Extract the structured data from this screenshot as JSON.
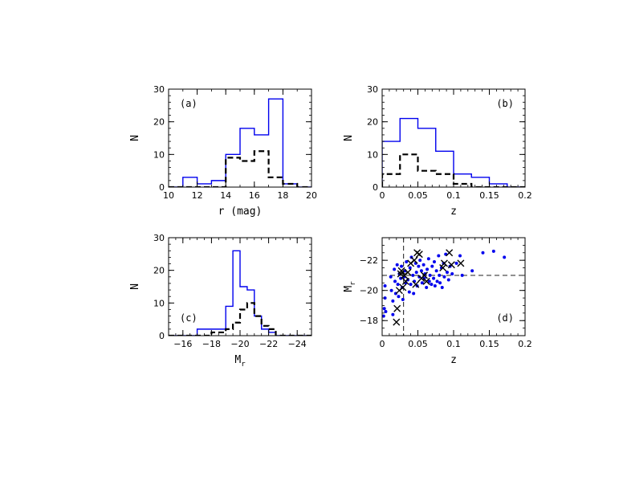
{
  "colors": {
    "all": "#0000ee",
    "subset": "#000000",
    "frame": "#000000"
  },
  "chart_data": [
    {
      "id": "a",
      "type": "histogram",
      "panel_label": "(a)",
      "xlabel": "r (mag)",
      "xlabel_sub": "",
      "ylabel": "N",
      "ylabel_sub": "",
      "xlim": [
        10,
        20
      ],
      "ylim": [
        0,
        30
      ],
      "xticks": [
        10,
        12,
        14,
        16,
        18,
        20
      ],
      "xtick_labels": [
        "10",
        "12",
        "14",
        "16",
        "18",
        "20"
      ],
      "yticks": [
        0,
        10,
        20,
        30
      ],
      "ytick_labels": [
        "0",
        "10",
        "20",
        "30"
      ],
      "series": [
        {
          "style": "solid-blue",
          "edges": [
            10,
            11,
            12,
            13,
            14,
            15,
            16,
            17,
            18,
            19,
            20
          ],
          "counts": [
            0,
            3,
            1,
            2,
            10,
            18,
            16,
            27,
            1,
            0
          ]
        },
        {
          "style": "dashed-black",
          "edges": [
            10,
            11,
            12,
            13,
            14,
            15,
            16,
            17,
            18,
            19,
            20
          ],
          "counts": [
            0,
            0,
            0,
            0,
            9,
            8,
            11,
            3,
            1,
            0
          ]
        }
      ]
    },
    {
      "id": "b",
      "type": "histogram",
      "panel_label": "(b)",
      "xlabel": "z",
      "xlabel_sub": "",
      "ylabel": "N",
      "ylabel_sub": "",
      "xlim": [
        0,
        0.2
      ],
      "ylim": [
        0,
        30
      ],
      "xticks": [
        0,
        0.05,
        0.1,
        0.15,
        0.2
      ],
      "xtick_labels": [
        "0",
        "0.05",
        "0.1",
        "0.15",
        "0.2"
      ],
      "yticks": [
        0,
        10,
        20,
        30
      ],
      "ytick_labels": [
        "0",
        "10",
        "20",
        "30"
      ],
      "series": [
        {
          "style": "solid-blue",
          "edges": [
            0,
            0.025,
            0.05,
            0.075,
            0.1,
            0.125,
            0.15,
            0.175,
            0.2
          ],
          "counts": [
            14,
            21,
            18,
            11,
            4,
            3,
            1,
            0
          ]
        },
        {
          "style": "dashed-black",
          "edges": [
            0,
            0.025,
            0.05,
            0.075,
            0.1,
            0.125,
            0.15,
            0.175,
            0.2
          ],
          "counts": [
            4,
            10,
            5,
            4,
            1,
            0,
            0,
            0
          ]
        }
      ]
    },
    {
      "id": "c",
      "type": "histogram",
      "panel_label": "(c)",
      "xlabel": "M",
      "xlabel_sub": "r",
      "ylabel": "N",
      "ylabel_sub": "",
      "xlim": [
        -15,
        -25
      ],
      "ylim": [
        0,
        30
      ],
      "xticks": [
        -16,
        -18,
        -20,
        -22,
        -24
      ],
      "xtick_labels": [
        "−16",
        "−18",
        "−20",
        "−22",
        "−24"
      ],
      "yticks": [
        0,
        10,
        20,
        30
      ],
      "ytick_labels": [
        "0",
        "10",
        "20",
        "30"
      ],
      "series": [
        {
          "style": "solid-blue",
          "edges": [
            -15,
            -16,
            -17,
            -18,
            -19,
            -19.5,
            -20,
            -20.5,
            -21,
            -21.5,
            -22,
            -22.5,
            -23,
            -25
          ],
          "counts": [
            0,
            0,
            2,
            2,
            9,
            26,
            15,
            14,
            6,
            2,
            1,
            0,
            0
          ]
        },
        {
          "style": "dashed-black",
          "edges": [
            -15,
            -16,
            -17,
            -18,
            -19,
            -19.5,
            -20,
            -20.5,
            -21,
            -21.5,
            -22,
            -22.5,
            -23,
            -25
          ],
          "counts": [
            0,
            0,
            0,
            1,
            2,
            4,
            8,
            10,
            6,
            3,
            2,
            0,
            0
          ]
        }
      ]
    },
    {
      "id": "d",
      "type": "scatter",
      "panel_label": "(d)",
      "xlabel": "z",
      "xlabel_sub": "",
      "ylabel": "M",
      "ylabel_sub": "r",
      "xlim": [
        0,
        0.2
      ],
      "ylim": [
        -17,
        -23.5
      ],
      "xticks": [
        0,
        0.05,
        0.1,
        0.15,
        0.2
      ],
      "xtick_labels": [
        "0",
        "0.05",
        "0.1",
        "0.15",
        "0.2"
      ],
      "yticks": [
        -18,
        -20,
        -22
      ],
      "ytick_labels": [
        "−18",
        "−20",
        "−22"
      ],
      "reference_lines": {
        "x": 0.03,
        "y": -21
      },
      "points_all": [
        [
          0.002,
          -18.3
        ],
        [
          0.003,
          -18.8
        ],
        [
          0.004,
          -19.5
        ],
        [
          0.004,
          -20.3
        ],
        [
          0.005,
          -18.6
        ],
        [
          0.012,
          -20.9
        ],
        [
          0.013,
          -20.0
        ],
        [
          0.015,
          -19.3
        ],
        [
          0.015,
          -18.4
        ],
        [
          0.017,
          -21.4
        ],
        [
          0.018,
          -20.6
        ],
        [
          0.019,
          -19.8
        ],
        [
          0.021,
          -21.7
        ],
        [
          0.022,
          -20.4
        ],
        [
          0.023,
          -19.6
        ],
        [
          0.024,
          -21.1
        ],
        [
          0.026,
          -20.8
        ],
        [
          0.027,
          -21.6
        ],
        [
          0.028,
          -20.2
        ],
        [
          0.029,
          -19.4
        ],
        [
          0.031,
          -20.9
        ],
        [
          0.032,
          -21.3
        ],
        [
          0.033,
          -20.5
        ],
        [
          0.034,
          -21.9
        ],
        [
          0.036,
          -20.7
        ],
        [
          0.038,
          -19.9
        ],
        [
          0.039,
          -21.5
        ],
        [
          0.04,
          -20.4
        ],
        [
          0.041,
          -22.2
        ],
        [
          0.043,
          -21.0
        ],
        [
          0.044,
          -19.8
        ],
        [
          0.045,
          -20.6
        ],
        [
          0.047,
          -21.8
        ],
        [
          0.048,
          -21.2
        ],
        [
          0.049,
          -20.3
        ],
        [
          0.051,
          -21.6
        ],
        [
          0.052,
          -20.9
        ],
        [
          0.053,
          -22.0
        ],
        [
          0.055,
          -21.3
        ],
        [
          0.056,
          -20.5
        ],
        [
          0.058,
          -21.7
        ],
        [
          0.059,
          -20.8
        ],
        [
          0.06,
          -21.1
        ],
        [
          0.062,
          -20.2
        ],
        [
          0.063,
          -21.4
        ],
        [
          0.065,
          -22.1
        ],
        [
          0.066,
          -20.6
        ],
        [
          0.067,
          -21.0
        ],
        [
          0.069,
          -20.4
        ],
        [
          0.07,
          -21.6
        ],
        [
          0.072,
          -20.8
        ],
        [
          0.073,
          -21.9
        ],
        [
          0.074,
          -20.3
        ],
        [
          0.076,
          -21.3
        ],
        [
          0.077,
          -20.6
        ],
        [
          0.079,
          -22.3
        ],
        [
          0.08,
          -21.0
        ],
        [
          0.081,
          -20.5
        ],
        [
          0.083,
          -21.5
        ],
        [
          0.084,
          -20.2
        ],
        [
          0.086,
          -21.8
        ],
        [
          0.087,
          -20.9
        ],
        [
          0.089,
          -22.4
        ],
        [
          0.091,
          -21.2
        ],
        [
          0.093,
          -20.7
        ],
        [
          0.095,
          -21.6
        ],
        [
          0.098,
          -21.1
        ],
        [
          0.104,
          -21.8
        ],
        [
          0.109,
          -22.3
        ],
        [
          0.112,
          -21.0
        ],
        [
          0.126,
          -21.3
        ],
        [
          0.141,
          -22.5
        ],
        [
          0.156,
          -22.6
        ],
        [
          0.171,
          -22.2
        ]
      ],
      "points_subset": [
        [
          0.02,
          -17.9
        ],
        [
          0.021,
          -18.8
        ],
        [
          0.024,
          -20.0
        ],
        [
          0.026,
          -21.1
        ],
        [
          0.027,
          -21.3
        ],
        [
          0.029,
          -20.2
        ],
        [
          0.031,
          -21.0
        ],
        [
          0.033,
          -20.6
        ],
        [
          0.036,
          -21.2
        ],
        [
          0.04,
          -21.8
        ],
        [
          0.045,
          -22.0
        ],
        [
          0.047,
          -20.4
        ],
        [
          0.049,
          -22.5
        ],
        [
          0.052,
          -22.4
        ],
        [
          0.055,
          -20.8
        ],
        [
          0.059,
          -21.0
        ],
        [
          0.062,
          -20.6
        ],
        [
          0.085,
          -21.5
        ],
        [
          0.087,
          -21.8
        ],
        [
          0.094,
          -22.5
        ],
        [
          0.097,
          -21.7
        ],
        [
          0.11,
          -21.8
        ]
      ]
    }
  ]
}
